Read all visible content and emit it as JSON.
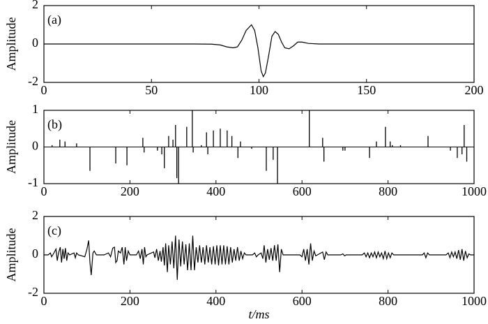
{
  "chart_data": [
    {
      "type": "line",
      "panel_label": "(a)",
      "ylabel": "Amplitude",
      "x": [
        0,
        70,
        78,
        82,
        85,
        88,
        90,
        92,
        94,
        96.5,
        98,
        99.5,
        101,
        102,
        103,
        104.5,
        106,
        107.5,
        109,
        110.5,
        112,
        114,
        116,
        118,
        120,
        123,
        128,
        200
      ],
      "values": [
        0,
        0,
        -0.01,
        -0.05,
        -0.15,
        -0.2,
        -0.15,
        0.2,
        0.7,
        1.0,
        0.7,
        -0.2,
        -1.4,
        -1.7,
        -1.5,
        -0.6,
        0.4,
        0.65,
        0.5,
        0.1,
        -0.2,
        -0.25,
        -0.1,
        0.1,
        0.1,
        0.03,
        0,
        0
      ],
      "xlim": [
        0,
        200
      ],
      "xticks": [
        0,
        50,
        100,
        150,
        200
      ],
      "ylim": [
        -2,
        2
      ],
      "yticks": [
        -2,
        0,
        2
      ]
    },
    {
      "type": "stem",
      "panel_label": "(b)",
      "ylabel": "Amplitude",
      "x": [
        19,
        37,
        49,
        76,
        107,
        167,
        193,
        230,
        233,
        264,
        274,
        280,
        290,
        300,
        306,
        309,
        313,
        332,
        345,
        347,
        366,
        378,
        381,
        394,
        410,
        426,
        437,
        451,
        457,
        483,
        517,
        533,
        543,
        617,
        648,
        651,
        695,
        700,
        757,
        773,
        794,
        805,
        810,
        829,
        893,
        945,
        961,
        972,
        977,
        983
      ],
      "values": [
        0.05,
        0.2,
        0.15,
        0.1,
        -0.65,
        -0.45,
        -0.5,
        0.25,
        -0.15,
        -0.1,
        -0.2,
        -0.58,
        0.3,
        0.2,
        0.6,
        -0.85,
        -1.0,
        0.55,
        1.0,
        -0.15,
        0.05,
        0.4,
        -0.2,
        0.45,
        0.5,
        0.45,
        0.3,
        -0.3,
        0.15,
        -0.05,
        -0.65,
        -0.35,
        -1.0,
        1.0,
        0.25,
        -0.4,
        -0.1,
        -0.1,
        -0.3,
        0.15,
        0.55,
        0.15,
        0.05,
        0.05,
        0.3,
        -0.1,
        -0.3,
        -0.2,
        0.6,
        -0.4
      ],
      "xlim": [
        0,
        1000
      ],
      "xticks": [
        0,
        200,
        400,
        600,
        800,
        1000
      ],
      "ylim": [
        -1,
        1
      ],
      "yticks": [
        -1,
        0,
        1
      ]
    },
    {
      "type": "line",
      "panel_label": "(c)",
      "ylabel": "Amplitude",
      "xlabel": "t/ms",
      "x": [
        0,
        10,
        15,
        18,
        22,
        28,
        31,
        34,
        38,
        41,
        44,
        47,
        50,
        53,
        56,
        60,
        70,
        73,
        76,
        80,
        95,
        100,
        104,
        107,
        110,
        114,
        117,
        122,
        140,
        150,
        155,
        160,
        164,
        167,
        170,
        173,
        178,
        182,
        186,
        189,
        192,
        196,
        200,
        215,
        220,
        224,
        228,
        231,
        234,
        237,
        240,
        255,
        258,
        262,
        266,
        270,
        273,
        277,
        280,
        283,
        287,
        290,
        294,
        298,
        302,
        306,
        310,
        314,
        318,
        322,
        326,
        330,
        334,
        338,
        342,
        346,
        350,
        354,
        358,
        362,
        366,
        370,
        374,
        378,
        382,
        386,
        390,
        394,
        398,
        402,
        406,
        410,
        414,
        418,
        422,
        426,
        430,
        434,
        438,
        442,
        446,
        450,
        454,
        458,
        462,
        466,
        470,
        485,
        490,
        494,
        498,
        505,
        509,
        512,
        516,
        520,
        524,
        528,
        532,
        536,
        540,
        544,
        548,
        552,
        556,
        595,
        600,
        604,
        608,
        612,
        616,
        620,
        624,
        628,
        632,
        636,
        648,
        652,
        656,
        660,
        690,
        695,
        699,
        703,
        740,
        745,
        749,
        753,
        757,
        761,
        765,
        769,
        773,
        777,
        781,
        785,
        789,
        793,
        797,
        801,
        805,
        809,
        813,
        880,
        884,
        888,
        892,
        896,
        935,
        940,
        944,
        948,
        952,
        956,
        960,
        964,
        968,
        972,
        976,
        980,
        984,
        988,
        992,
        1000
      ],
      "values": [
        0,
        0,
        0.1,
        -0.1,
        0.05,
        0.3,
        -0.3,
        0.1,
        0.4,
        -0.4,
        0.3,
        -0.2,
        0.35,
        -0.3,
        0.1,
        0,
        0.1,
        -0.15,
        0.1,
        0,
        -0.1,
        0.3,
        0.75,
        -0.4,
        -1.05,
        0.1,
        0.2,
        0,
        0,
        0.1,
        -0.1,
        0.35,
        0.4,
        -0.4,
        -0.3,
        0.2,
        0.1,
        0.4,
        -0.5,
        0.4,
        -0.3,
        0.2,
        0,
        0,
        0.2,
        -0.2,
        0.3,
        -0.5,
        0.4,
        -0.1,
        0,
        0.15,
        -0.15,
        0.3,
        -0.3,
        0.2,
        -0.35,
        0.4,
        -0.55,
        0.6,
        -0.9,
        0.5,
        -0.5,
        0.7,
        -0.7,
        1.0,
        -1.3,
        0.8,
        -0.6,
        0.7,
        -0.5,
        0.55,
        -0.8,
        0.6,
        -0.8,
        1.0,
        -0.8,
        0.4,
        -0.4,
        0.5,
        -0.4,
        0.4,
        -0.5,
        0.5,
        -0.4,
        0.4,
        -0.5,
        0.45,
        -0.5,
        0.5,
        -0.55,
        0.5,
        -0.5,
        0.5,
        -0.5,
        0.45,
        -0.5,
        0.4,
        -0.4,
        0.3,
        -0.3,
        0.4,
        -0.3,
        0.2,
        -0.2,
        0.1,
        0,
        0,
        0.1,
        -0.1,
        0,
        0.1,
        -0.2,
        0.5,
        -0.4,
        0.3,
        -0.25,
        0.35,
        -0.3,
        0.5,
        -0.3,
        0.55,
        -0.9,
        0.3,
        0,
        0,
        -0.1,
        0.3,
        -0.3,
        0.3,
        -0.5,
        0.6,
        -0.3,
        0.2,
        -0.05,
        0,
        0.15,
        -0.25,
        0.15,
        0,
        0,
        0.05,
        -0.05,
        0,
        0,
        0.1,
        -0.1,
        0.1,
        -0.15,
        0.1,
        -0.1,
        0.15,
        -0.15,
        0.15,
        -0.1,
        0.1,
        -0.2,
        0.2,
        -0.2,
        0.1,
        -0.15,
        0.1,
        0,
        0,
        0.1,
        -0.15,
        0.1,
        0,
        0,
        0.1,
        -0.15,
        0.15,
        -0.1,
        0.15,
        -0.2,
        0.25,
        -0.25,
        0.3,
        -0.3,
        0.2,
        -0.15,
        0.05,
        0,
        0
      ],
      "xlim": [
        0,
        1000
      ],
      "xticks": [
        0,
        200,
        400,
        600,
        800,
        1000
      ],
      "ylim": [
        -2,
        2
      ],
      "yticks": [
        -2,
        0,
        2
      ]
    }
  ]
}
